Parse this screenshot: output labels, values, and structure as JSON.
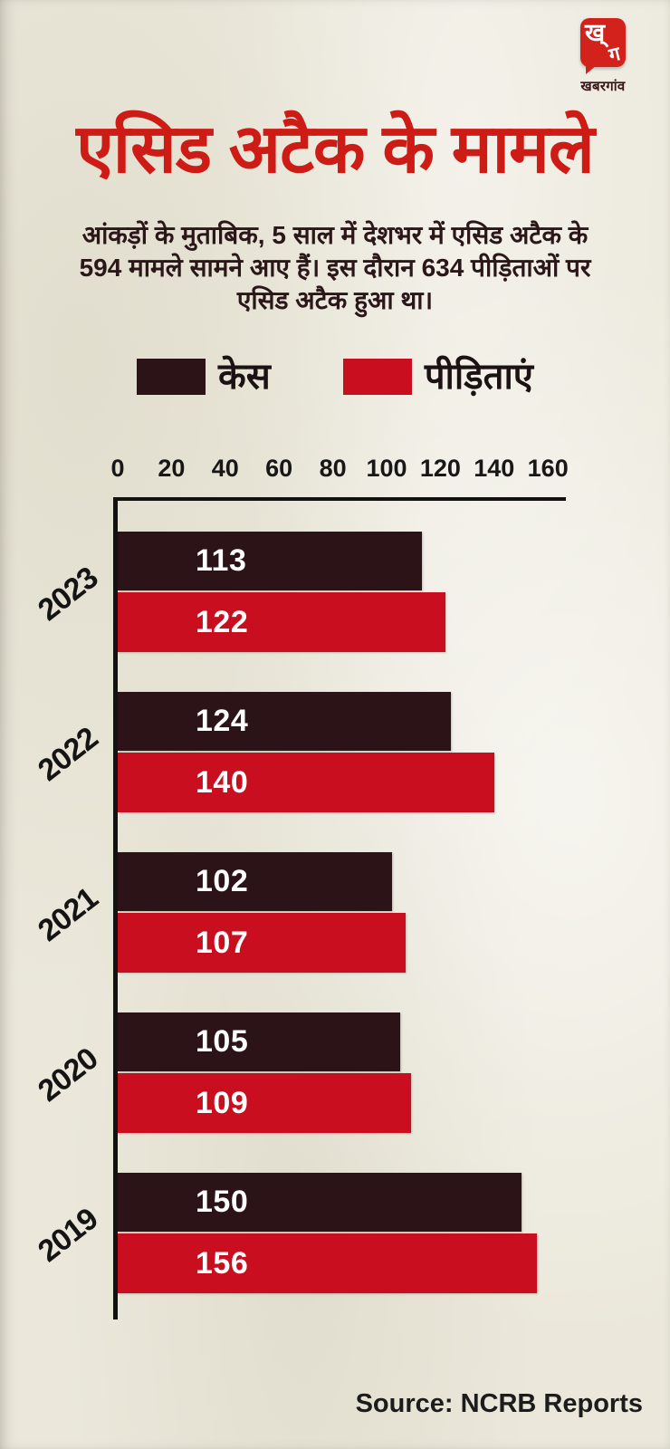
{
  "colors": {
    "background": "#ebe8db",
    "title_red": "#cd1c15",
    "bar_dark": "#2b1317",
    "bar_red": "#c90f1f",
    "logo_red": "#d2221b",
    "subtitle_text": "#2b171a",
    "axis_text": "#171717"
  },
  "logo": {
    "monogram_top": "ख्",
    "monogram_bottom": "ग",
    "wordmark": "खबरगांव"
  },
  "title": "एसिड अटैक के मामले",
  "subtitle": {
    "lines": [
      [
        {
          "t": "आंकड़ों के मुताबिक, ",
          "b": false
        },
        {
          "t": "5 साल",
          "b": true
        },
        {
          "t": " में ",
          "b": false
        },
        {
          "t": "देशभर",
          "b": true
        },
        {
          "t": " में ",
          "b": false
        },
        {
          "t": "एसिड अटैक",
          "b": true
        },
        {
          "t": " के",
          "b": false
        }
      ],
      [
        {
          "t": "594 मामले",
          "b": true
        },
        {
          "t": " सामने आए हैं। इस दौरान ",
          "b": false
        },
        {
          "t": "634 पीड़िताओं",
          "b": true
        },
        {
          "t": " पर",
          "b": false
        }
      ],
      [
        {
          "t": "एसिड अटैक हुआ",
          "b": true
        },
        {
          "t": " था।",
          "b": false
        }
      ]
    ]
  },
  "legend": {
    "items": [
      {
        "label": "केस"
      },
      {
        "label": "पीड़िताएं"
      }
    ]
  },
  "chart_data": {
    "type": "bar",
    "orientation": "horizontal",
    "title": "एसिड अटैक के मामले",
    "categories": [
      "2023",
      "2022",
      "2021",
      "2020",
      "2019"
    ],
    "series": [
      {
        "name": "केस",
        "color": "#2b1317",
        "values": [
          113,
          124,
          102,
          105,
          150
        ]
      },
      {
        "name": "पीड़िताएं",
        "color": "#c90f1f",
        "values": [
          122,
          140,
          107,
          109,
          156
        ]
      }
    ],
    "xlim": [
      0,
      160
    ],
    "xticks": [
      0,
      20,
      40,
      60,
      80,
      100,
      120,
      140,
      160
    ],
    "value_labels": true,
    "legend_position": "top",
    "grid": false
  },
  "source": "Source: NCRB Reports"
}
